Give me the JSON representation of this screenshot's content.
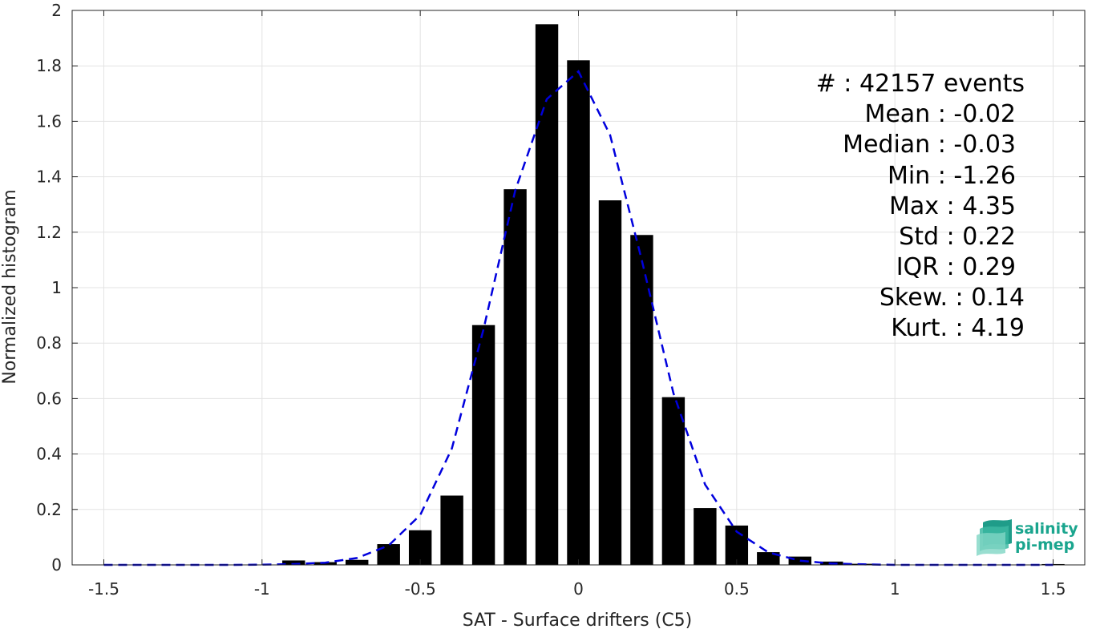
{
  "chart_data": {
    "type": "bar",
    "xlabel": "SAT - Surface drifters (C5)",
    "ylabel": "Normalized histogram",
    "xlim": [
      -1.6,
      1.6
    ],
    "ylim": [
      0,
      2
    ],
    "xticks": [
      -1.5,
      -1,
      -0.5,
      0,
      0.5,
      1,
      1.5
    ],
    "xtick_labels": [
      "-1.5",
      "-1",
      "-0.5",
      "0",
      "0.5",
      "1",
      "1.5"
    ],
    "yticks": [
      0,
      0.2,
      0.4,
      0.6,
      0.8,
      1,
      1.2,
      1.4,
      1.6,
      1.8,
      2
    ],
    "ytick_labels": [
      "0",
      "0.2",
      "0.4",
      "0.6",
      "0.8",
      "1",
      "1.2",
      "1.4",
      "1.6",
      "1.8",
      "2"
    ],
    "grid": true,
    "bar_color": "#000000",
    "bar_width": 0.072,
    "bars": {
      "x": [
        -1.5,
        -1.4,
        -1.3,
        -1.2,
        -1.1,
        -1.0,
        -0.9,
        -0.8,
        -0.7,
        -0.6,
        -0.5,
        -0.4,
        -0.3,
        -0.2,
        -0.1,
        0.0,
        0.1,
        0.2,
        0.3,
        0.4,
        0.5,
        0.6,
        0.7,
        0.8,
        0.9,
        1.0,
        1.1,
        1.2,
        1.3,
        1.4,
        1.5
      ],
      "y": [
        0,
        0,
        0,
        0,
        0,
        0,
        0.016,
        0.01,
        0.018,
        0.075,
        0.125,
        0.25,
        0.865,
        1.355,
        1.95,
        1.82,
        1.315,
        1.19,
        0.605,
        0.205,
        0.142,
        0.046,
        0.03,
        0.012,
        0.004,
        0,
        0,
        0,
        0,
        0,
        0.003
      ]
    },
    "fit_curve": {
      "color": "#0000dd",
      "style": "dashed",
      "x": [
        -1.5,
        -1.4,
        -1.3,
        -1.2,
        -1.1,
        -1.0,
        -0.9,
        -0.8,
        -0.7,
        -0.6,
        -0.5,
        -0.4,
        -0.3,
        -0.2,
        -0.1,
        0.0,
        0.1,
        0.2,
        0.3,
        0.4,
        0.5,
        0.6,
        0.7,
        0.8,
        0.9,
        1.0,
        1.1,
        1.2,
        1.3,
        1.4,
        1.5
      ],
      "y": [
        0,
        0,
        0,
        0,
        0,
        0.001,
        0.003,
        0.008,
        0.025,
        0.07,
        0.18,
        0.42,
        0.85,
        1.35,
        1.68,
        1.78,
        1.55,
        1.1,
        0.62,
        0.29,
        0.12,
        0.045,
        0.015,
        0.005,
        0.002,
        0,
        0,
        0,
        0,
        0,
        0
      ]
    }
  },
  "stats": {
    "count": "#  : 42157 events",
    "mean": "Mean : -0.02",
    "median": "Median : -0.03",
    "min": "Min : -1.26",
    "max": "Max : 4.35",
    "std": "Std : 0.22",
    "iqr": "IQR : 0.29",
    "skew": "Skew. : 0.14",
    "kurt": "Kurt. : 4.19"
  },
  "logo": {
    "line1": "salinity",
    "line2": "pi-mep",
    "color": "#1aa58e"
  }
}
